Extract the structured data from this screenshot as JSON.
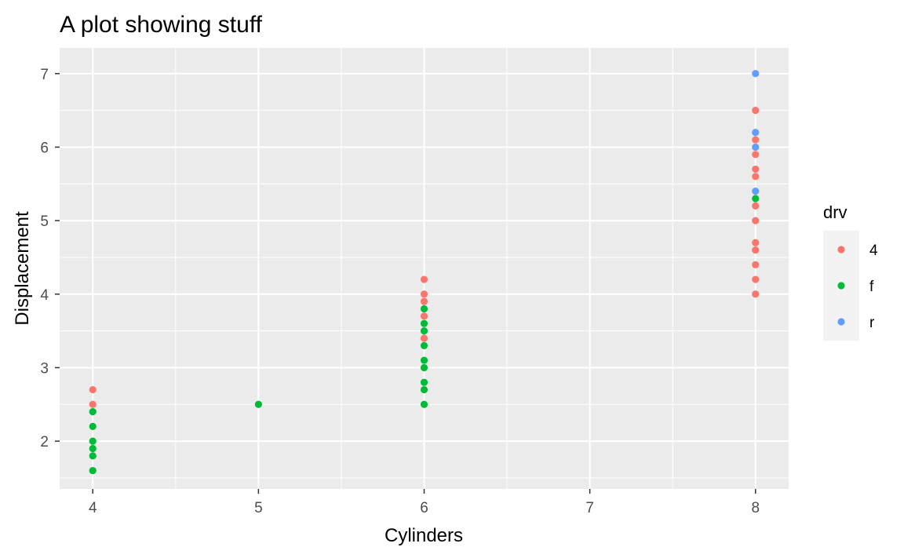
{
  "chart_data": {
    "type": "scatter",
    "title": "A plot showing stuff",
    "xlabel": "Cylinders",
    "ylabel": "Displacement",
    "xlim": [
      3.8,
      8.2
    ],
    "ylim": [
      1.35,
      7.35
    ],
    "x_ticks": [
      4,
      5,
      6,
      7,
      8
    ],
    "y_ticks": [
      2,
      3,
      4,
      5,
      6,
      7
    ],
    "grid": true,
    "legend": {
      "title": "drv",
      "position": "right"
    },
    "series": [
      {
        "name": "4",
        "color": "#F8766D",
        "points": [
          [
            4,
            2.7
          ],
          [
            4,
            2.5
          ],
          [
            6,
            4.2
          ],
          [
            6,
            4.0
          ],
          [
            6,
            3.9
          ],
          [
            6,
            3.7
          ],
          [
            6,
            3.4
          ],
          [
            8,
            6.5
          ],
          [
            8,
            6.1
          ],
          [
            8,
            5.9
          ],
          [
            8,
            5.7
          ],
          [
            8,
            5.6
          ],
          [
            8,
            5.2
          ],
          [
            8,
            5.0
          ],
          [
            8,
            4.7
          ],
          [
            8,
            4.6
          ],
          [
            8,
            4.4
          ],
          [
            8,
            4.2
          ],
          [
            8,
            4.0
          ]
        ]
      },
      {
        "name": "f",
        "color": "#00BA38",
        "points": [
          [
            4,
            2.4
          ],
          [
            4,
            2.2
          ],
          [
            4,
            2.0
          ],
          [
            4,
            1.9
          ],
          [
            4,
            1.8
          ],
          [
            4,
            1.6
          ],
          [
            5,
            2.5
          ],
          [
            6,
            3.8
          ],
          [
            6,
            3.6
          ],
          [
            6,
            3.5
          ],
          [
            6,
            3.3
          ],
          [
            6,
            3.1
          ],
          [
            6,
            3.0
          ],
          [
            6,
            2.8
          ],
          [
            6,
            2.7
          ],
          [
            6,
            2.5
          ],
          [
            8,
            5.3
          ]
        ]
      },
      {
        "name": "r",
        "color": "#619CFF",
        "points": [
          [
            8,
            7.0
          ],
          [
            8,
            6.2
          ],
          [
            8,
            6.0
          ],
          [
            8,
            5.4
          ]
        ]
      }
    ]
  }
}
